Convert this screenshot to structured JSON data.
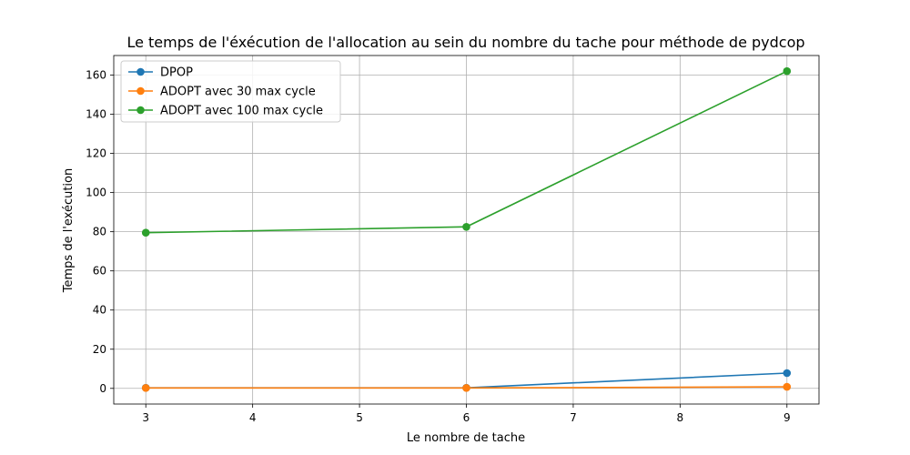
{
  "chart_data": {
    "type": "line",
    "title": "Le temps de l'éxécution de l'allocation au sein du nombre du tache pour méthode de pydcop",
    "xlabel": "Le nombre de tache",
    "ylabel": "Temps de l'exécution",
    "x": [
      3,
      6,
      9
    ],
    "xlim": [
      2.7,
      9.3
    ],
    "ylim": [
      -8,
      170
    ],
    "xticks": [
      3,
      4,
      5,
      6,
      7,
      8,
      9
    ],
    "yticks": [
      0,
      20,
      40,
      60,
      80,
      100,
      120,
      140,
      160
    ],
    "grid": true,
    "legend_position": "top-left",
    "series": [
      {
        "name": "DPOP",
        "values": [
          0.3,
          0.3,
          7.8
        ],
        "color": "#1f77b4"
      },
      {
        "name": "ADOPT avec 30 max cycle",
        "values": [
          0.2,
          0.2,
          0.8
        ],
        "color": "#ff7f0e"
      },
      {
        "name": "ADOPT avec 100 max cycle",
        "values": [
          79.5,
          82.5,
          162
        ],
        "color": "#2ca02c"
      }
    ]
  }
}
